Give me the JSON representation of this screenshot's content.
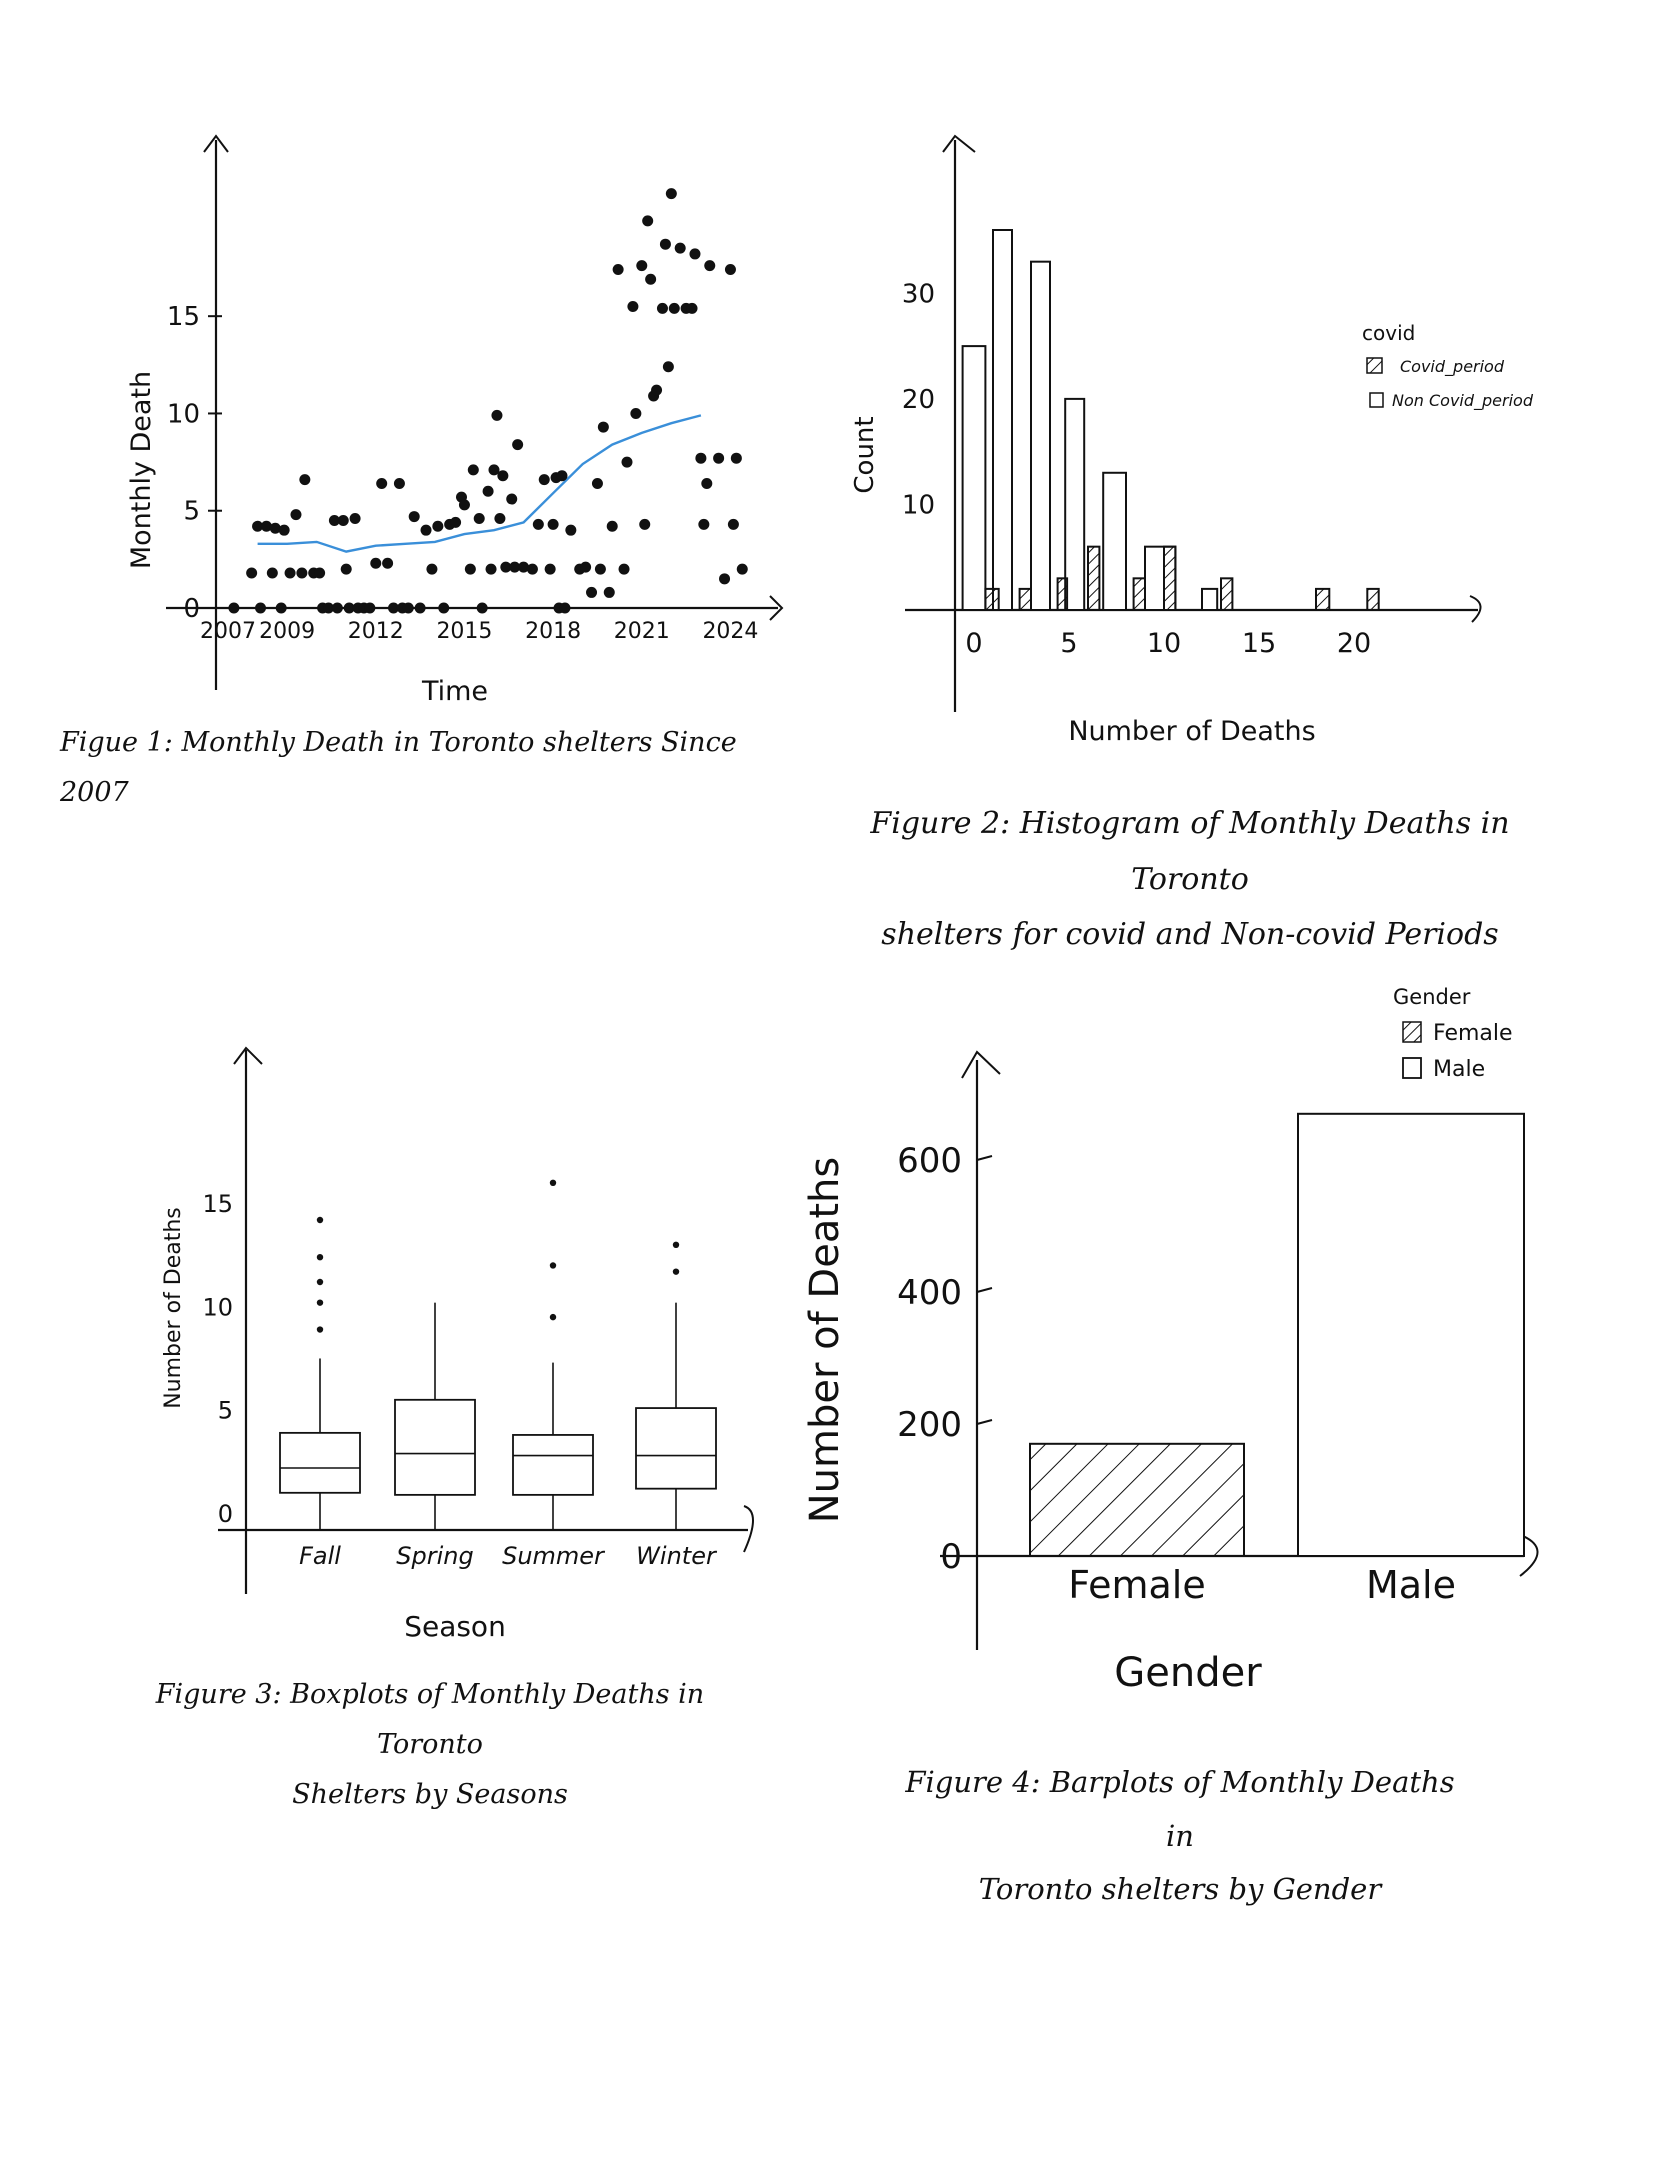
{
  "figures": {
    "fig1_caption": "Figue 1: Monthly Death in Toronto shelters Since 2007",
    "fig2_caption_line1": "Figure 2: Histogram of Monthly Deaths in Toronto",
    "fig2_caption_line2": "shelters for covid and Non-covid Periods",
    "fig3_caption_line1": "Figure 3: Boxplots of Monthly Deaths in Toronto",
    "fig3_caption_line2": "Shelters by Seasons",
    "fig4_caption_line1": "Figure 4: Barplots of Monthly Deaths in",
    "fig4_caption_line2": "Toronto shelters by Gender"
  },
  "colors": {
    "ink": "#111111",
    "trend": "#3a8fd9"
  },
  "chart_data": [
    {
      "type": "scatter",
      "xlabel": "Time",
      "ylabel": "Monthly Death",
      "xticks": [
        "2007",
        "2009",
        "2012",
        "2015",
        "2018",
        "2021",
        "2024"
      ],
      "yticks": [
        "0",
        "5",
        "10",
        "15"
      ],
      "xlim": [
        2007,
        2025
      ],
      "ylim": [
        0,
        22
      ],
      "points": [
        [
          2007.2,
          0
        ],
        [
          2007.8,
          1.8
        ],
        [
          2008.0,
          4.2
        ],
        [
          2008.3,
          4.2
        ],
        [
          2008.6,
          4.1
        ],
        [
          2008.9,
          4.0
        ],
        [
          2008.1,
          0
        ],
        [
          2008.5,
          1.8
        ],
        [
          2008.8,
          0
        ],
        [
          2009.1,
          1.8
        ],
        [
          2009.3,
          4.8
        ],
        [
          2009.6,
          6.6
        ],
        [
          2009.5,
          1.8
        ],
        [
          2009.9,
          1.8
        ],
        [
          2010.1,
          1.8
        ],
        [
          2010.2,
          0
        ],
        [
          2010.4,
          0
        ],
        [
          2010.6,
          4.5
        ],
        [
          2010.9,
          4.5
        ],
        [
          2010.7,
          0
        ],
        [
          2011.0,
          2.0
        ],
        [
          2011.1,
          0
        ],
        [
          2011.3,
          4.6
        ],
        [
          2011.4,
          0
        ],
        [
          2011.6,
          0
        ],
        [
          2011.8,
          0
        ],
        [
          2012.0,
          2.3
        ],
        [
          2012.2,
          6.4
        ],
        [
          2012.4,
          2.3
        ],
        [
          2012.6,
          0
        ],
        [
          2012.8,
          6.4
        ],
        [
          2012.9,
          0
        ],
        [
          2013.1,
          0
        ],
        [
          2013.3,
          4.7
        ],
        [
          2013.5,
          0
        ],
        [
          2013.7,
          4.0
        ],
        [
          2013.9,
          2.0
        ],
        [
          2014.1,
          4.2
        ],
        [
          2014.3,
          0
        ],
        [
          2014.5,
          4.3
        ],
        [
          2014.7,
          4.4
        ],
        [
          2014.9,
          5.7
        ],
        [
          2015.0,
          5.3
        ],
        [
          2015.2,
          2.0
        ],
        [
          2015.3,
          7.1
        ],
        [
          2015.5,
          4.6
        ],
        [
          2015.6,
          0
        ],
        [
          2015.8,
          6.0
        ],
        [
          2015.9,
          2.0
        ],
        [
          2016.0,
          7.1
        ],
        [
          2016.1,
          9.9
        ],
        [
          2016.2,
          4.6
        ],
        [
          2016.3,
          6.8
        ],
        [
          2016.4,
          2.1
        ],
        [
          2016.6,
          5.6
        ],
        [
          2016.7,
          2.1
        ],
        [
          2016.8,
          8.4
        ],
        [
          2017.0,
          2.1
        ],
        [
          2017.3,
          2.0
        ],
        [
          2017.5,
          4.3
        ],
        [
          2017.7,
          6.6
        ],
        [
          2017.9,
          2.0
        ],
        [
          2018.0,
          4.3
        ],
        [
          2018.1,
          6.7
        ],
        [
          2018.2,
          0
        ],
        [
          2018.3,
          6.8
        ],
        [
          2018.4,
          0
        ],
        [
          2018.6,
          4.0
        ],
        [
          2018.9,
          2.0
        ],
        [
          2019.1,
          2.1
        ],
        [
          2019.3,
          0.8
        ],
        [
          2019.5,
          6.4
        ],
        [
          2019.6,
          2.0
        ],
        [
          2019.7,
          9.3
        ],
        [
          2019.9,
          0.8
        ],
        [
          2020.0,
          4.2
        ],
        [
          2020.2,
          17.4
        ],
        [
          2020.4,
          2.0
        ],
        [
          2020.5,
          7.5
        ],
        [
          2020.7,
          15.5
        ],
        [
          2020.8,
          10.0
        ],
        [
          2021.0,
          17.6
        ],
        [
          2021.1,
          4.3
        ],
        [
          2021.2,
          19.9
        ],
        [
          2021.3,
          16.9
        ],
        [
          2021.4,
          10.9
        ],
        [
          2021.5,
          11.2
        ],
        [
          2021.7,
          15.4
        ],
        [
          2021.8,
          18.7
        ],
        [
          2021.9,
          12.4
        ],
        [
          2022.0,
          21.3
        ],
        [
          2022.1,
          15.4
        ],
        [
          2022.3,
          18.5
        ],
        [
          2022.5,
          15.4
        ],
        [
          2022.7,
          15.4
        ],
        [
          2022.8,
          18.2
        ],
        [
          2023.0,
          7.7
        ],
        [
          2023.1,
          4.3
        ],
        [
          2023.2,
          6.4
        ],
        [
          2023.3,
          17.6
        ],
        [
          2023.6,
          7.7
        ],
        [
          2023.8,
          1.5
        ],
        [
          2024.0,
          17.4
        ],
        [
          2024.1,
          4.3
        ],
        [
          2024.2,
          7.7
        ],
        [
          2024.4,
          2.0
        ]
      ],
      "trend": [
        [
          2008.0,
          3.3
        ],
        [
          2009.0,
          3.3
        ],
        [
          2010.0,
          3.4
        ],
        [
          2011.0,
          2.9
        ],
        [
          2012.0,
          3.2
        ],
        [
          2013.0,
          3.3
        ],
        [
          2014.0,
          3.4
        ],
        [
          2015.0,
          3.8
        ],
        [
          2016.0,
          4.0
        ],
        [
          2017.0,
          4.4
        ],
        [
          2018.0,
          5.9
        ],
        [
          2019.0,
          7.4
        ],
        [
          2020.0,
          8.4
        ],
        [
          2021.0,
          9.0
        ],
        [
          2022.0,
          9.5
        ],
        [
          2023.0,
          9.9
        ]
      ]
    },
    {
      "type": "bar",
      "title_legend": "covid",
      "xlabel": "Number of Deaths",
      "ylabel": "Count",
      "xticks": [
        "0",
        "5",
        "10",
        "15",
        "20"
      ],
      "yticks": [
        "10",
        "20",
        "30"
      ],
      "xlim": [
        -1,
        24
      ],
      "ylim": [
        0,
        36
      ],
      "series": [
        {
          "name": "Non Covid_period",
          "bins": [
            [
              -0.6,
              0.6,
              25
            ],
            [
              1.0,
              2.0,
              36
            ],
            [
              3.0,
              4.0,
              33
            ],
            [
              4.8,
              5.8,
              20
            ],
            [
              6.8,
              8.0,
              13
            ],
            [
              9.0,
              10.6,
              6
            ],
            [
              12.0,
              12.8,
              2
            ]
          ]
        },
        {
          "name": "Covid_period",
          "bins": [
            [
              0.6,
              1.3,
              2
            ],
            [
              2.4,
              3.0,
              2
            ],
            [
              4.4,
              4.9,
              3
            ],
            [
              6.0,
              6.6,
              6
            ],
            [
              8.4,
              9.0,
              3
            ],
            [
              10.0,
              10.6,
              6
            ],
            [
              13.0,
              13.6,
              3
            ],
            [
              18.0,
              18.7,
              2
            ],
            [
              20.7,
              21.3,
              2
            ]
          ]
        }
      ]
    },
    {
      "type": "box",
      "xlabel": "Season",
      "ylabel": "Number of Deaths",
      "categories": [
        "Fall",
        "Spring",
        "Summer",
        "Winter"
      ],
      "yticks": [
        "0",
        "5",
        "10",
        "15"
      ],
      "ylim": [
        0,
        17
      ],
      "boxes": [
        {
          "min": 0,
          "q1": 1.8,
          "median": 3.0,
          "q3": 4.7,
          "max": 8.3,
          "outliers": [
            9.7,
            11.0,
            12.0,
            13.2,
            15.0
          ]
        },
        {
          "min": 0,
          "q1": 1.7,
          "median": 3.7,
          "q3": 6.3,
          "max": 11.0,
          "outliers": []
        },
        {
          "min": 0,
          "q1": 1.7,
          "median": 3.6,
          "q3": 4.6,
          "max": 8.1,
          "outliers": [
            10.3,
            12.8,
            16.8
          ]
        },
        {
          "min": 0,
          "q1": 2.0,
          "median": 3.6,
          "q3": 5.9,
          "max": 11.0,
          "outliers": [
            12.5,
            13.8
          ]
        }
      ]
    },
    {
      "type": "bar",
      "legend_title": "Gender",
      "xlabel": "Gender",
      "ylabel": "Number of Deaths",
      "categories": [
        "Female",
        "Male"
      ],
      "values": [
        170,
        670
      ],
      "yticks": [
        "0",
        "200",
        "400",
        "600"
      ],
      "ylim": [
        0,
        720
      ],
      "series_names": [
        "Female",
        "Male"
      ]
    }
  ]
}
